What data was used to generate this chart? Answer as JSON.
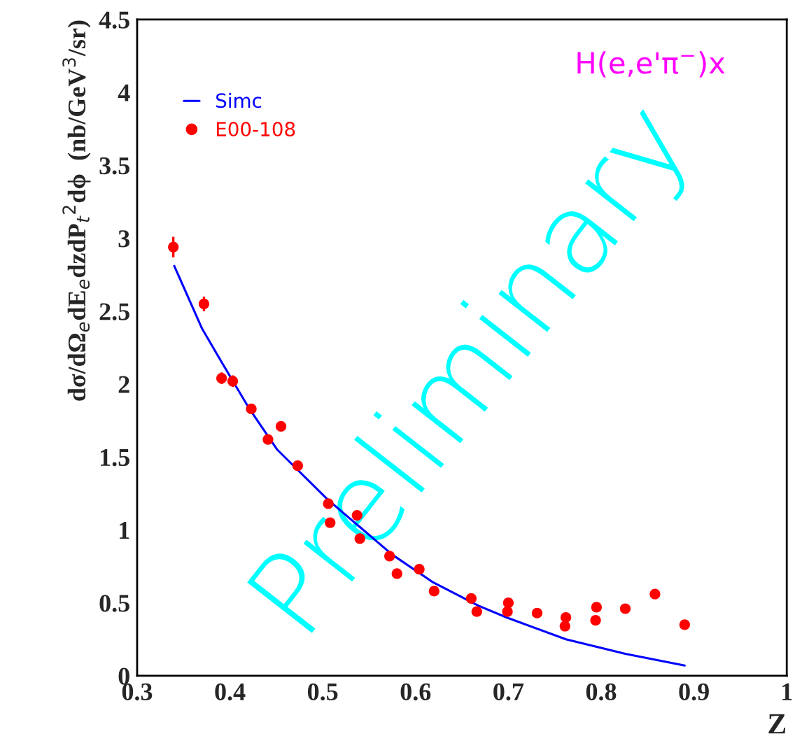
{
  "chart_data": {
    "type": "scatter",
    "xlabel": "Z",
    "ylabel": "dσ/dΩ$_{e}$dE$_{e}$dzdP$_{t}$$^{2}$dϕ  (nb/GeV$^{3}$/sr)",
    "annotations": [
      "H(e,e'π$^{−}$)x",
      "Preliminary"
    ],
    "series": [
      {
        "name": "Simc",
        "type": "line",
        "color": "#0000ff",
        "marker": "none",
        "line_style": "solid",
        "x": [
          0.34,
          0.37,
          0.392,
          0.421,
          0.451,
          0.505,
          0.54,
          0.575,
          0.619,
          0.668,
          0.698,
          0.762,
          0.826,
          0.89
        ],
        "values": [
          2.81,
          2.38,
          2.14,
          1.83,
          1.55,
          1.21,
          1.02,
          0.83,
          0.64,
          0.48,
          0.4,
          0.25,
          0.15,
          0.07
        ]
      },
      {
        "name": "E00-108",
        "color": "#ff0000",
        "marker": "circle",
        "x": [
          0.339,
          0.372,
          0.391,
          0.403,
          0.423,
          0.441,
          0.455,
          0.473,
          0.506,
          0.508,
          0.537,
          0.54,
          0.572,
          0.58,
          0.604,
          0.62,
          0.66,
          0.666,
          0.699,
          0.7,
          0.731,
          0.762,
          0.761,
          0.795,
          0.794,
          0.826,
          0.858,
          0.89
        ],
        "values": [
          2.94,
          2.55,
          2.04,
          2.02,
          1.83,
          1.62,
          1.71,
          1.44,
          1.18,
          1.05,
          1.1,
          0.94,
          0.82,
          0.7,
          0.73,
          0.58,
          0.53,
          0.44,
          0.44,
          0.5,
          0.43,
          0.4,
          0.34,
          0.47,
          0.38,
          0.46,
          0.56,
          0.35
        ],
        "errors": [
          0.07,
          0.05,
          0.04,
          0.04,
          0.02,
          0.02,
          0.02,
          0.02,
          null,
          null,
          null,
          null,
          null,
          null,
          null,
          null,
          null,
          null,
          null,
          null,
          null,
          null,
          null,
          null,
          null,
          null,
          null,
          null
        ]
      }
    ],
    "xlim": [
      0.3,
      1.0
    ],
    "ylim": [
      0,
      4.5
    ],
    "xticks": [
      0.3,
      0.4,
      0.5,
      0.6,
      0.7,
      0.8,
      0.9,
      {
        "value": 1.0,
        "label": "1"
      }
    ],
    "yticks": [
      {
        "value": 0,
        "label": "0"
      },
      0.5,
      {
        "value": 1,
        "label": "1"
      },
      1.5,
      {
        "value": 2,
        "label": "2"
      },
      2.5,
      {
        "value": 3,
        "label": "3"
      },
      3.5,
      {
        "value": 4,
        "label": "4"
      },
      4.5
    ],
    "grid": false,
    "legend": "top left"
  }
}
